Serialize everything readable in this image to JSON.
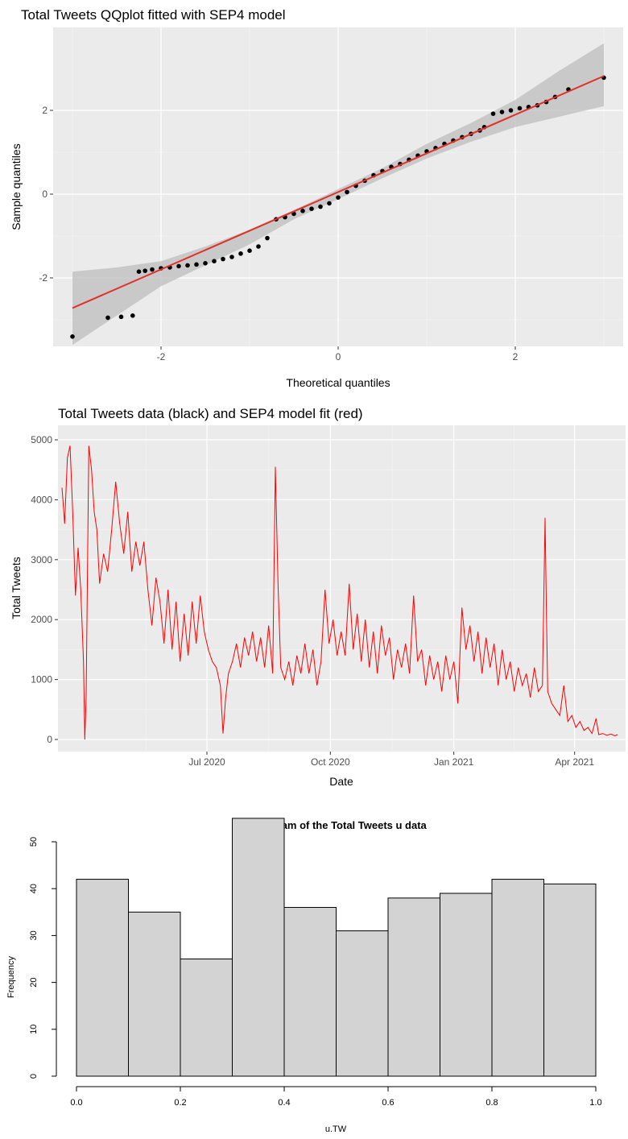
{
  "chart_data": [
    {
      "type": "scatter",
      "title": "Total Tweets QQplot fitted with SEP4 model",
      "xlabel": "Theoretical quantiles",
      "ylabel": "Sample quantiles",
      "xlim": [
        -3.0,
        3.0
      ],
      "ylim": [
        -3.4,
        2.8
      ],
      "x_ticks": [
        -2,
        0,
        2
      ],
      "y_ticks": [
        -2,
        0,
        2
      ],
      "grid": true,
      "points": [
        [
          -3.0,
          -3.4
        ],
        [
          -2.6,
          -2.95
        ],
        [
          -2.45,
          -2.93
        ],
        [
          -2.32,
          -2.9
        ],
        [
          -2.25,
          -1.85
        ],
        [
          -2.18,
          -1.83
        ],
        [
          -2.1,
          -1.8
        ],
        [
          -2.0,
          -1.77
        ],
        [
          -1.9,
          -1.75
        ],
        [
          -1.8,
          -1.72
        ],
        [
          -1.7,
          -1.7
        ],
        [
          -1.6,
          -1.68
        ],
        [
          -1.5,
          -1.65
        ],
        [
          -1.4,
          -1.6
        ],
        [
          -1.3,
          -1.55
        ],
        [
          -1.2,
          -1.5
        ],
        [
          -1.1,
          -1.42
        ],
        [
          -1.0,
          -1.35
        ],
        [
          -0.9,
          -1.25
        ],
        [
          -0.8,
          -1.05
        ],
        [
          -0.7,
          -0.6
        ],
        [
          -0.6,
          -0.55
        ],
        [
          -0.5,
          -0.47
        ],
        [
          -0.4,
          -0.4
        ],
        [
          -0.3,
          -0.35
        ],
        [
          -0.2,
          -0.3
        ],
        [
          -0.1,
          -0.22
        ],
        [
          0.0,
          -0.08
        ],
        [
          0.1,
          0.05
        ],
        [
          0.2,
          0.2
        ],
        [
          0.3,
          0.32
        ],
        [
          0.4,
          0.45
        ],
        [
          0.5,
          0.55
        ],
        [
          0.6,
          0.65
        ],
        [
          0.7,
          0.72
        ],
        [
          0.8,
          0.82
        ],
        [
          0.9,
          0.92
        ],
        [
          1.0,
          1.02
        ],
        [
          1.1,
          1.1
        ],
        [
          1.2,
          1.2
        ],
        [
          1.3,
          1.28
        ],
        [
          1.4,
          1.36
        ],
        [
          1.5,
          1.44
        ],
        [
          1.6,
          1.52
        ],
        [
          1.65,
          1.6
        ],
        [
          1.75,
          1.92
        ],
        [
          1.85,
          1.96
        ],
        [
          1.95,
          2.0
        ],
        [
          2.05,
          2.05
        ],
        [
          2.15,
          2.08
        ],
        [
          2.25,
          2.12
        ],
        [
          2.35,
          2.2
        ],
        [
          2.45,
          2.32
        ],
        [
          2.6,
          2.5
        ],
        [
          3.0,
          2.78
        ]
      ],
      "fit_line": [
        [
          -3.0,
          -2.72
        ],
        [
          3.0,
          2.82
        ]
      ],
      "band": [
        [
          -3.0,
          -3.6,
          -1.85
        ],
        [
          -2.5,
          -2.9,
          -1.75
        ],
        [
          -2.0,
          -2.2,
          -1.6
        ],
        [
          -1.5,
          -1.7,
          -1.25
        ],
        [
          -1.0,
          -1.2,
          -0.85
        ],
        [
          -0.5,
          -0.6,
          -0.38
        ],
        [
          0.0,
          -0.12,
          0.12
        ],
        [
          0.5,
          0.38,
          0.62
        ],
        [
          1.0,
          0.85,
          1.2
        ],
        [
          1.5,
          1.25,
          1.7
        ],
        [
          2.0,
          1.6,
          2.25
        ],
        [
          2.5,
          1.85,
          2.95
        ],
        [
          3.0,
          2.1,
          3.6
        ]
      ]
    },
    {
      "type": "line",
      "title": "Total Tweets data (black) and SEP4 model fit (red)",
      "xlabel": "Date",
      "ylabel": "Total Tweets",
      "x_range": [
        "2020-03-18",
        "2021-05-05"
      ],
      "ylim": [
        0,
        5000
      ],
      "x_ticks": [
        {
          "date": "2020-07-01",
          "label": "Jul 2020"
        },
        {
          "date": "2020-10-01",
          "label": "Oct 2020"
        },
        {
          "date": "2021-01-01",
          "label": "Jan 2021"
        },
        {
          "date": "2021-04-01",
          "label": "Apr 2021"
        }
      ],
      "y_ticks": [
        0,
        1000,
        2000,
        3000,
        4000,
        5000
      ],
      "grid": true,
      "series": [
        {
          "color": "#ff0000",
          "points": [
            [
              "2020-03-15",
              4200
            ],
            [
              "2020-03-17",
              3600
            ],
            [
              "2020-03-19",
              4700
            ],
            [
              "2020-03-21",
              4900
            ],
            [
              "2020-03-23",
              3800
            ],
            [
              "2020-03-25",
              2400
            ],
            [
              "2020-03-27",
              3200
            ],
            [
              "2020-03-29",
              2500
            ],
            [
              "2020-03-31",
              1300
            ],
            [
              "2020-04-01",
              0
            ],
            [
              "2020-04-02",
              700
            ],
            [
              "2020-04-04",
              4900
            ],
            [
              "2020-04-06",
              4500
            ],
            [
              "2020-04-08",
              3800
            ],
            [
              "2020-04-10",
              3500
            ],
            [
              "2020-04-12",
              2600
            ],
            [
              "2020-04-15",
              3100
            ],
            [
              "2020-04-18",
              2800
            ],
            [
              "2020-04-21",
              3500
            ],
            [
              "2020-04-24",
              4300
            ],
            [
              "2020-04-27",
              3600
            ],
            [
              "2020-04-30",
              3100
            ],
            [
              "2020-05-03",
              3800
            ],
            [
              "2020-05-06",
              2800
            ],
            [
              "2020-05-09",
              3300
            ],
            [
              "2020-05-12",
              2900
            ],
            [
              "2020-05-15",
              3300
            ],
            [
              "2020-05-18",
              2500
            ],
            [
              "2020-05-21",
              1900
            ],
            [
              "2020-05-24",
              2700
            ],
            [
              "2020-05-27",
              2300
            ],
            [
              "2020-05-30",
              1600
            ],
            [
              "2020-06-02",
              2500
            ],
            [
              "2020-06-05",
              1500
            ],
            [
              "2020-06-08",
              2300
            ],
            [
              "2020-06-11",
              1300
            ],
            [
              "2020-06-14",
              2100
            ],
            [
              "2020-06-17",
              1400
            ],
            [
              "2020-06-20",
              2300
            ],
            [
              "2020-06-23",
              1600
            ],
            [
              "2020-06-26",
              2400
            ],
            [
              "2020-06-29",
              1800
            ],
            [
              "2020-07-02",
              1500
            ],
            [
              "2020-07-05",
              1300
            ],
            [
              "2020-07-08",
              1200
            ],
            [
              "2020-07-11",
              900
            ],
            [
              "2020-07-13",
              100
            ],
            [
              "2020-07-15",
              700
            ],
            [
              "2020-07-17",
              1100
            ],
            [
              "2020-07-20",
              1300
            ],
            [
              "2020-07-23",
              1600
            ],
            [
              "2020-07-26",
              1200
            ],
            [
              "2020-07-29",
              1700
            ],
            [
              "2020-08-01",
              1400
            ],
            [
              "2020-08-04",
              1800
            ],
            [
              "2020-08-07",
              1300
            ],
            [
              "2020-08-10",
              1700
            ],
            [
              "2020-08-13",
              1200
            ],
            [
              "2020-08-16",
              1900
            ],
            [
              "2020-08-19",
              1100
            ],
            [
              "2020-08-21",
              4550
            ],
            [
              "2020-08-23",
              2600
            ],
            [
              "2020-08-25",
              1200
            ],
            [
              "2020-08-28",
              1000
            ],
            [
              "2020-08-31",
              1300
            ],
            [
              "2020-09-03",
              900
            ],
            [
              "2020-09-06",
              1400
            ],
            [
              "2020-09-09",
              1100
            ],
            [
              "2020-09-12",
              1600
            ],
            [
              "2020-09-15",
              1100
            ],
            [
              "2020-09-18",
              1500
            ],
            [
              "2020-09-21",
              900
            ],
            [
              "2020-09-24",
              1300
            ],
            [
              "2020-09-27",
              2500
            ],
            [
              "2020-09-30",
              1600
            ],
            [
              "2020-10-03",
              2000
            ],
            [
              "2020-10-06",
              1400
            ],
            [
              "2020-10-09",
              1800
            ],
            [
              "2020-10-12",
              1400
            ],
            [
              "2020-10-15",
              2600
            ],
            [
              "2020-10-18",
              1500
            ],
            [
              "2020-10-21",
              2100
            ],
            [
              "2020-10-24",
              1300
            ],
            [
              "2020-10-27",
              2000
            ],
            [
              "2020-10-30",
              1200
            ],
            [
              "2020-11-02",
              1800
            ],
            [
              "2020-11-05",
              1100
            ],
            [
              "2020-11-08",
              1900
            ],
            [
              "2020-11-11",
              1400
            ],
            [
              "2020-11-14",
              1700
            ],
            [
              "2020-11-17",
              1000
            ],
            [
              "2020-11-20",
              1500
            ],
            [
              "2020-11-23",
              1200
            ],
            [
              "2020-11-26",
              1600
            ],
            [
              "2020-11-29",
              1100
            ],
            [
              "2020-12-02",
              2400
            ],
            [
              "2020-12-05",
              1300
            ],
            [
              "2020-12-08",
              1500
            ],
            [
              "2020-12-11",
              900
            ],
            [
              "2020-12-14",
              1400
            ],
            [
              "2020-12-17",
              1000
            ],
            [
              "2020-12-20",
              1300
            ],
            [
              "2020-12-23",
              800
            ],
            [
              "2020-12-26",
              1400
            ],
            [
              "2020-12-29",
              1000
            ],
            [
              "2021-01-01",
              1300
            ],
            [
              "2021-01-04",
              600
            ],
            [
              "2021-01-07",
              2200
            ],
            [
              "2021-01-10",
              1500
            ],
            [
              "2021-01-13",
              1900
            ],
            [
              "2021-01-16",
              1300
            ],
            [
              "2021-01-19",
              1800
            ],
            [
              "2021-01-22",
              1100
            ],
            [
              "2021-01-25",
              1700
            ],
            [
              "2021-01-28",
              1200
            ],
            [
              "2021-01-31",
              1600
            ],
            [
              "2021-02-03",
              900
            ],
            [
              "2021-02-06",
              1500
            ],
            [
              "2021-02-09",
              1000
            ],
            [
              "2021-02-12",
              1300
            ],
            [
              "2021-02-15",
              800
            ],
            [
              "2021-02-18",
              1200
            ],
            [
              "2021-02-21",
              900
            ],
            [
              "2021-02-24",
              1100
            ],
            [
              "2021-02-27",
              700
            ],
            [
              "2021-03-02",
              1200
            ],
            [
              "2021-03-05",
              800
            ],
            [
              "2021-03-08",
              900
            ],
            [
              "2021-03-10",
              3700
            ],
            [
              "2021-03-11",
              2100
            ],
            [
              "2021-03-12",
              800
            ],
            [
              "2021-03-15",
              600
            ],
            [
              "2021-03-18",
              500
            ],
            [
              "2021-03-21",
              400
            ],
            [
              "2021-03-24",
              900
            ],
            [
              "2021-03-27",
              300
            ],
            [
              "2021-03-30",
              400
            ],
            [
              "2021-04-02",
              200
            ],
            [
              "2021-04-05",
              300
            ],
            [
              "2021-04-08",
              150
            ],
            [
              "2021-04-11",
              200
            ],
            [
              "2021-04-14",
              100
            ],
            [
              "2021-04-17",
              350
            ],
            [
              "2021-04-19",
              80
            ],
            [
              "2021-04-22",
              100
            ],
            [
              "2021-04-25",
              70
            ],
            [
              "2021-04-28",
              90
            ],
            [
              "2021-05-01",
              60
            ],
            [
              "2021-05-03",
              80
            ]
          ]
        }
      ]
    },
    {
      "type": "bar",
      "title": "Histogram of the Total Tweets u data",
      "xlabel": "u.TW",
      "ylabel": "Frequency",
      "bins": [
        [
          0.0,
          0.1
        ],
        [
          0.1,
          0.2
        ],
        [
          0.2,
          0.3
        ],
        [
          0.3,
          0.4
        ],
        [
          0.4,
          0.5
        ],
        [
          0.5,
          0.6
        ],
        [
          0.6,
          0.7
        ],
        [
          0.7,
          0.8
        ],
        [
          0.8,
          0.9
        ],
        [
          0.9,
          1.0
        ]
      ],
      "values": [
        42,
        35,
        25,
        55,
        36,
        31,
        38,
        39,
        42,
        41
      ],
      "x_ticks": [
        "0.0",
        "0.2",
        "0.4",
        "0.6",
        "0.8",
        "1.0"
      ],
      "y_ticks": [
        "0",
        "10",
        "20",
        "30",
        "40",
        "50"
      ],
      "ylim": [
        0,
        55
      ],
      "grid": false
    }
  ]
}
